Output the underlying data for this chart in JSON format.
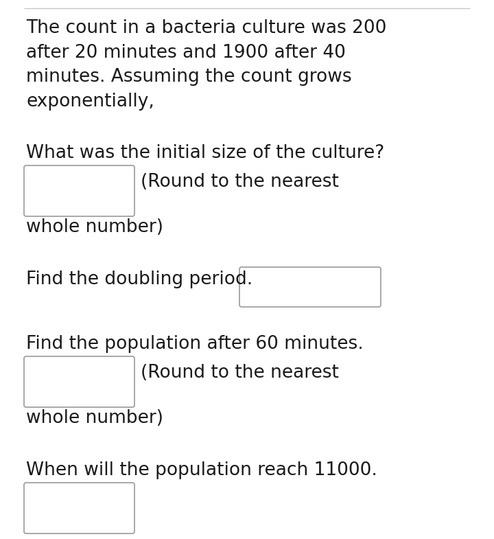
{
  "background_color": "#ffffff",
  "top_line_color": "#c8c8c8",
  "text_color": "#1a1a1a",
  "font_size": 19.0,
  "font_family": "DejaVu Sans",
  "paragraph1": "The count in a bacteria culture was 200\nafter 20 minutes and 1900 after 40\nminutes. Assuming the count grows\nexponentially,",
  "question1": "What was the initial size of the culture?",
  "question1_sub1": "(Round to the nearest",
  "question1_sub2": "whole number)",
  "question2": "Find the doubling period.",
  "question3": "Find the population after 60 minutes.",
  "question3_sub1": "(Round to the nearest",
  "question3_sub2": "whole number)",
  "question4": "When will the population reach 11000.",
  "box_color": "#ffffff",
  "box_border_color": "#999999",
  "fig_width": 7.2,
  "fig_height": 7.85,
  "dpi": 100
}
